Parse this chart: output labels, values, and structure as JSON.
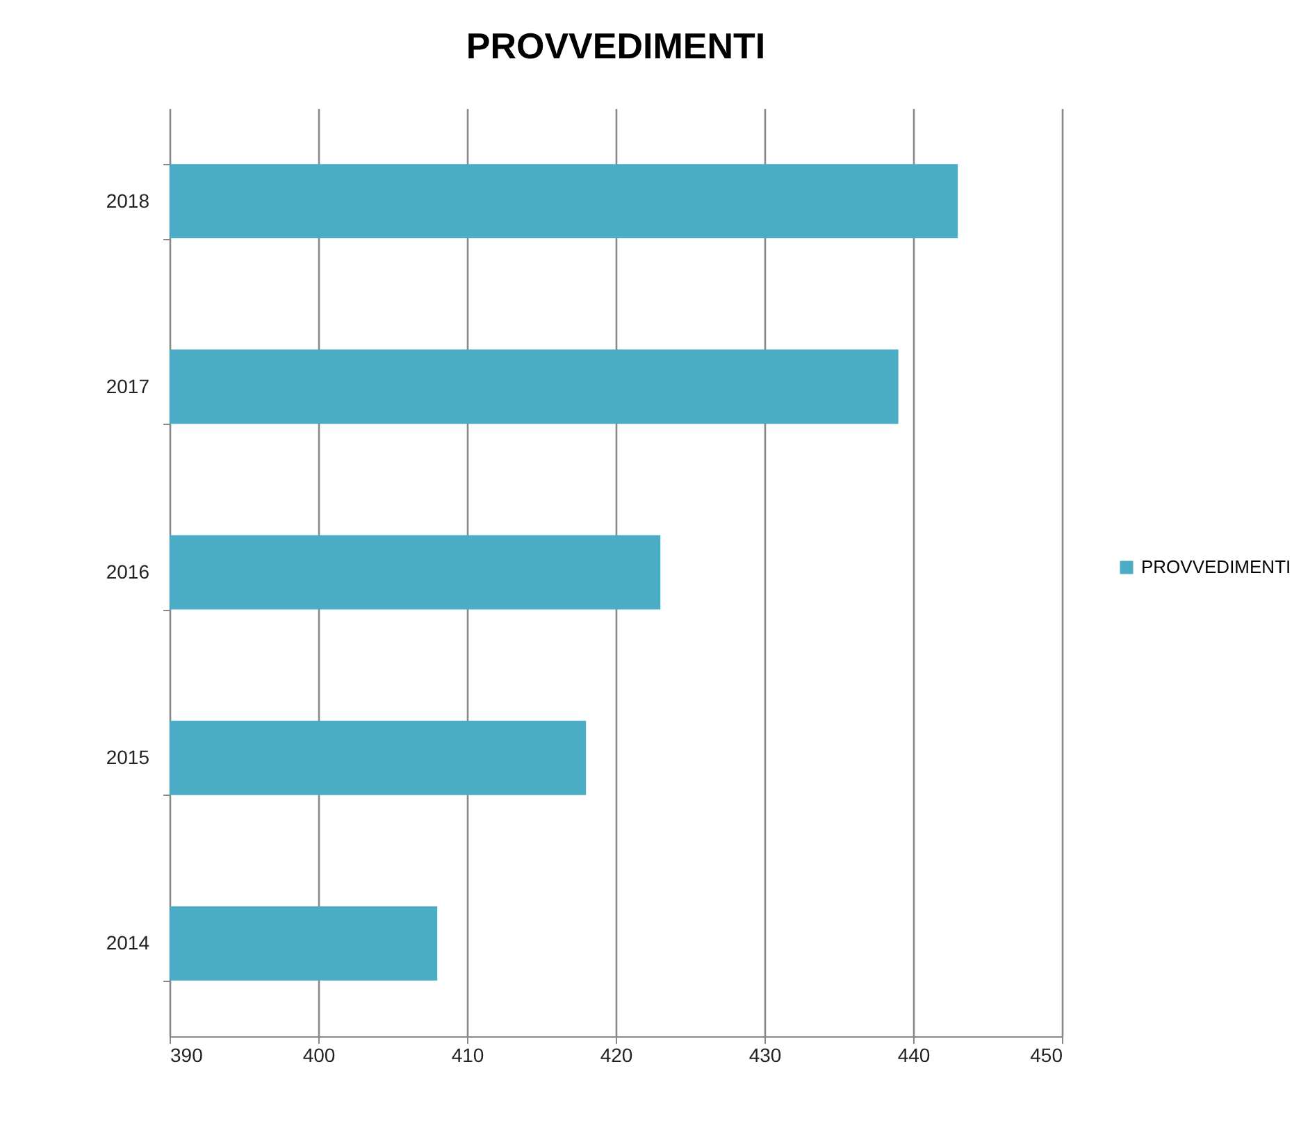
{
  "chart_data": {
    "type": "bar",
    "orientation": "horizontal",
    "title": "PROVVEDIMENTI",
    "categories": [
      "2018",
      "2017",
      "2016",
      "2015",
      "2014"
    ],
    "series": [
      {
        "name": "PROVVEDIMENTI",
        "color": "#4bacc6",
        "values": [
          443,
          439,
          423,
          418,
          408
        ]
      }
    ],
    "xlim": [
      390,
      450
    ],
    "xticks": [
      390,
      400,
      410,
      420,
      430,
      440,
      450
    ],
    "grid": "x",
    "legend": "right"
  }
}
